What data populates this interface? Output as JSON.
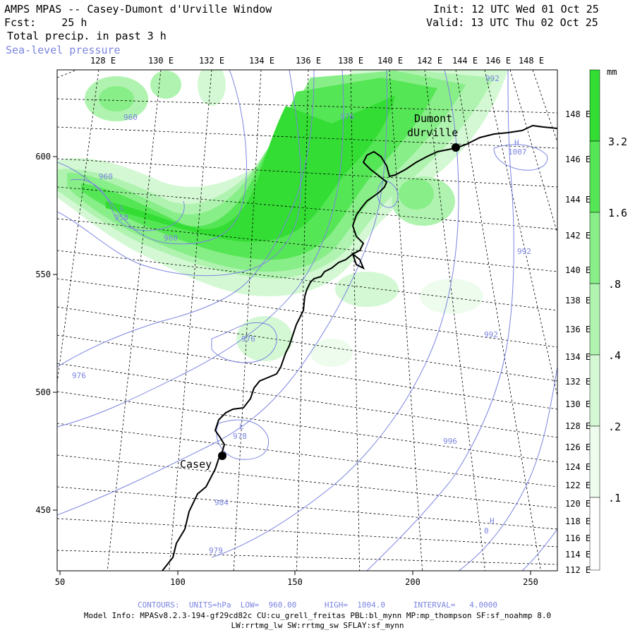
{
  "header": {
    "title": "AMPS MPAS -- Casey-Dumont d'Urville Window",
    "forecast": "Fcst:    25 h",
    "field": "Total precip. in past 3 h",
    "overlay": "Sea-level pressure",
    "init": "Init: 12 UTC Wed 01 Oct 25",
    "valid": "Valid: 13 UTC Thu 02 Oct 25"
  },
  "top_lon_labels": [
    "128 E",
    "130 E",
    "132 E",
    "134 E",
    "136 E",
    "138 E",
    "140 E",
    "142 E",
    "144 E",
    "146 E",
    "148 E"
  ],
  "right_lon_labels": [
    "148 E",
    "146 E",
    "144 E",
    "142 E",
    "140 E",
    "138 E",
    "136 E",
    "134 E",
    "132 E",
    "130 E",
    "128 E",
    "126 E",
    "124 E",
    "122 E",
    "120 E",
    "118 E",
    "116 E",
    "114 E",
    "112 E"
  ],
  "x_axis_ticks": [
    "50",
    "100",
    "150",
    "200",
    "250"
  ],
  "y_axis_ticks": [
    "600",
    "550",
    "500",
    "450"
  ],
  "stations": [
    {
      "name": "Dumont\ndUrville",
      "line1": "Dumont",
      "line2": "dUrville"
    },
    {
      "name": "Casey",
      "line1": "Casey"
    }
  ],
  "pressure_labels": [
    "960",
    "960",
    "958",
    "960",
    "976",
    "976",
    "976",
    "978",
    "984",
    "979",
    "992",
    "992",
    "992",
    "996",
    "1007",
    "0"
  ],
  "highs_lows": [
    "L",
    "L",
    "H",
    "H"
  ],
  "colorbar": {
    "unit": "mm",
    "levels": [
      "3.2",
      "1.6",
      ".8",
      ".4",
      ".2",
      ".1"
    ],
    "colors": [
      "#33dd33",
      "#55e655",
      "#88ee88",
      "#b0f3b0",
      "#d4f8d4",
      "#eefcee"
    ]
  },
  "footer": {
    "contours": "CONTOURS:  UNITS=hPa  LOW=  960.00      HIGH=  1004.0      INTERVAL=   4.0000",
    "model_info": "Model Info: MPASv8.2.3-194-gf29cd82c CU:cu_grell_freitas PBL:bl_mynn MP:mp_thompson SF:sf_noahmp 8.0",
    "model_info2": "LW:rrtmg_lw SW:rrtmg_sw SFLAY:sf_mynn"
  }
}
